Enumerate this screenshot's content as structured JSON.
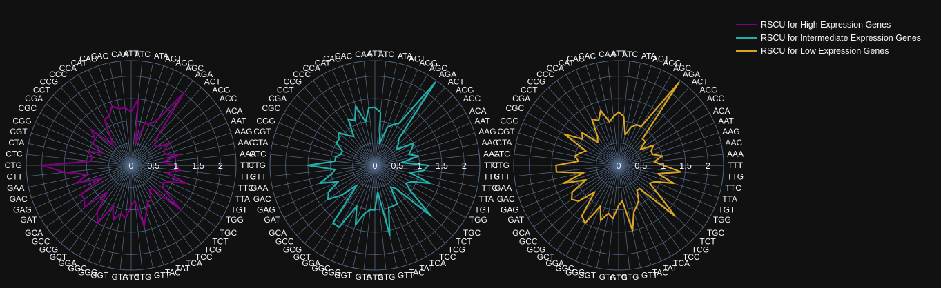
{
  "chart_data": {
    "type": "radar",
    "title": "",
    "theta_labels": [
      "ATT",
      "ATC",
      "ATA",
      "AGT",
      "AGG",
      "AGC",
      "AGA",
      "ACT",
      "ACG",
      "ACC",
      "ACA",
      "AAT",
      "AAG",
      "AAC",
      "AAA",
      "TTT",
      "TTG",
      "TTC",
      "TTA",
      "TGT",
      "TGG",
      "TGC",
      "TCT",
      "TCG",
      "TCC",
      "TCA",
      "TAT",
      "TAC",
      "GTT",
      "GTG",
      "GTC",
      "GTA",
      "GGT",
      "GGG",
      "GGC",
      "GGA",
      "GCT",
      "GCG",
      "GCC",
      "GCA",
      "GAT",
      "GAG",
      "GAC",
      "GAA",
      "CTT",
      "CTG",
      "CTC",
      "CTA",
      "CGT",
      "CGG",
      "CGC",
      "CGA",
      "CCT",
      "CCG",
      "CCC",
      "CCA",
      "CAT",
      "CAG",
      "CAC",
      "CAA"
    ],
    "radial_ticks": [
      "0",
      "0.5",
      "1",
      "1.5",
      "2"
    ],
    "radial_range": [
      0,
      2.35
    ],
    "series": [
      {
        "name": "RSCU for High Expression Genes",
        "color": "#800080",
        "values": [
          1.2,
          1.5,
          0.5,
          1.0,
          1.0,
          1.2,
          2.0,
          0.9,
          0.7,
          0.7,
          1.0,
          0.8,
          0.8,
          1.1,
          0.7,
          1.0,
          1.1,
          0.8,
          1.3,
          0.9,
          0.8,
          0.9,
          1.5,
          0.7,
          0.7,
          0.9,
          0.9,
          1.1,
          1.4,
          0.8,
          0.9,
          1.2,
          1.1,
          1.3,
          1.0,
          1.5,
          1.3,
          0.8,
          1.4,
          1.3,
          1.3,
          0.7,
          1.3,
          1.0,
          1.5,
          2.0,
          0.9,
          0.9,
          1.0,
          0.7,
          1.0,
          1.0,
          1.2,
          0.6,
          0.8,
          1.2,
          1.2,
          1.4,
          1.3,
          1.3
        ]
      },
      {
        "name": "RSCU for Intermediate Expression Genes",
        "color": "#20B2AA",
        "values": [
          1.3,
          1.2,
          0.5,
          0.9,
          1.0,
          1.1,
          2.3,
          0.8,
          0.7,
          0.6,
          1.0,
          0.9,
          0.8,
          1.0,
          0.6,
          1.2,
          1.1,
          0.8,
          1.3,
          0.9,
          0.8,
          1.0,
          1.7,
          0.7,
          0.6,
          1.0,
          1.0,
          1.0,
          1.6,
          0.6,
          1.0,
          1.0,
          1.1,
          1.4,
          1.0,
          1.6,
          1.6,
          0.6,
          1.0,
          1.3,
          1.2,
          0.9,
          1.3,
          1.0,
          0.9,
          1.5,
          0.9,
          0.9,
          0.8,
          0.8,
          1.0,
          1.0,
          1.1,
          0.9,
          0.8,
          1.2,
          1.1,
          1.4,
          1.0,
          1.3
        ]
      },
      {
        "name": "RSCU for Low Expression Genes",
        "color": "#DAA520",
        "values": [
          1.2,
          1.1,
          0.7,
          0.9,
          1.0,
          1.0,
          2.3,
          0.8,
          0.8,
          0.6,
          0.9,
          0.8,
          0.8,
          1.0,
          0.8,
          1.0,
          1.4,
          0.9,
          1.3,
          0.9,
          0.8,
          1.1,
          1.7,
          0.7,
          0.7,
          0.9,
          1.0,
          1.1,
          1.5,
          0.8,
          0.9,
          1.2,
          1.1,
          1.3,
          1.0,
          1.5,
          1.4,
          0.8,
          1.2,
          1.3,
          1.2,
          0.8,
          1.3,
          0.8,
          1.4,
          1.4,
          0.9,
          1.0,
          0.9,
          0.8,
          1.4,
          1.0,
          1.1,
          0.7,
          0.8,
          1.2,
          1.1,
          1.3,
          1.0,
          1.1
        ]
      }
    ],
    "legend_position": "top-right",
    "grid": true
  },
  "colors": {
    "background": "#111111",
    "grid": "#506784",
    "text": "#f2f5fa"
  }
}
